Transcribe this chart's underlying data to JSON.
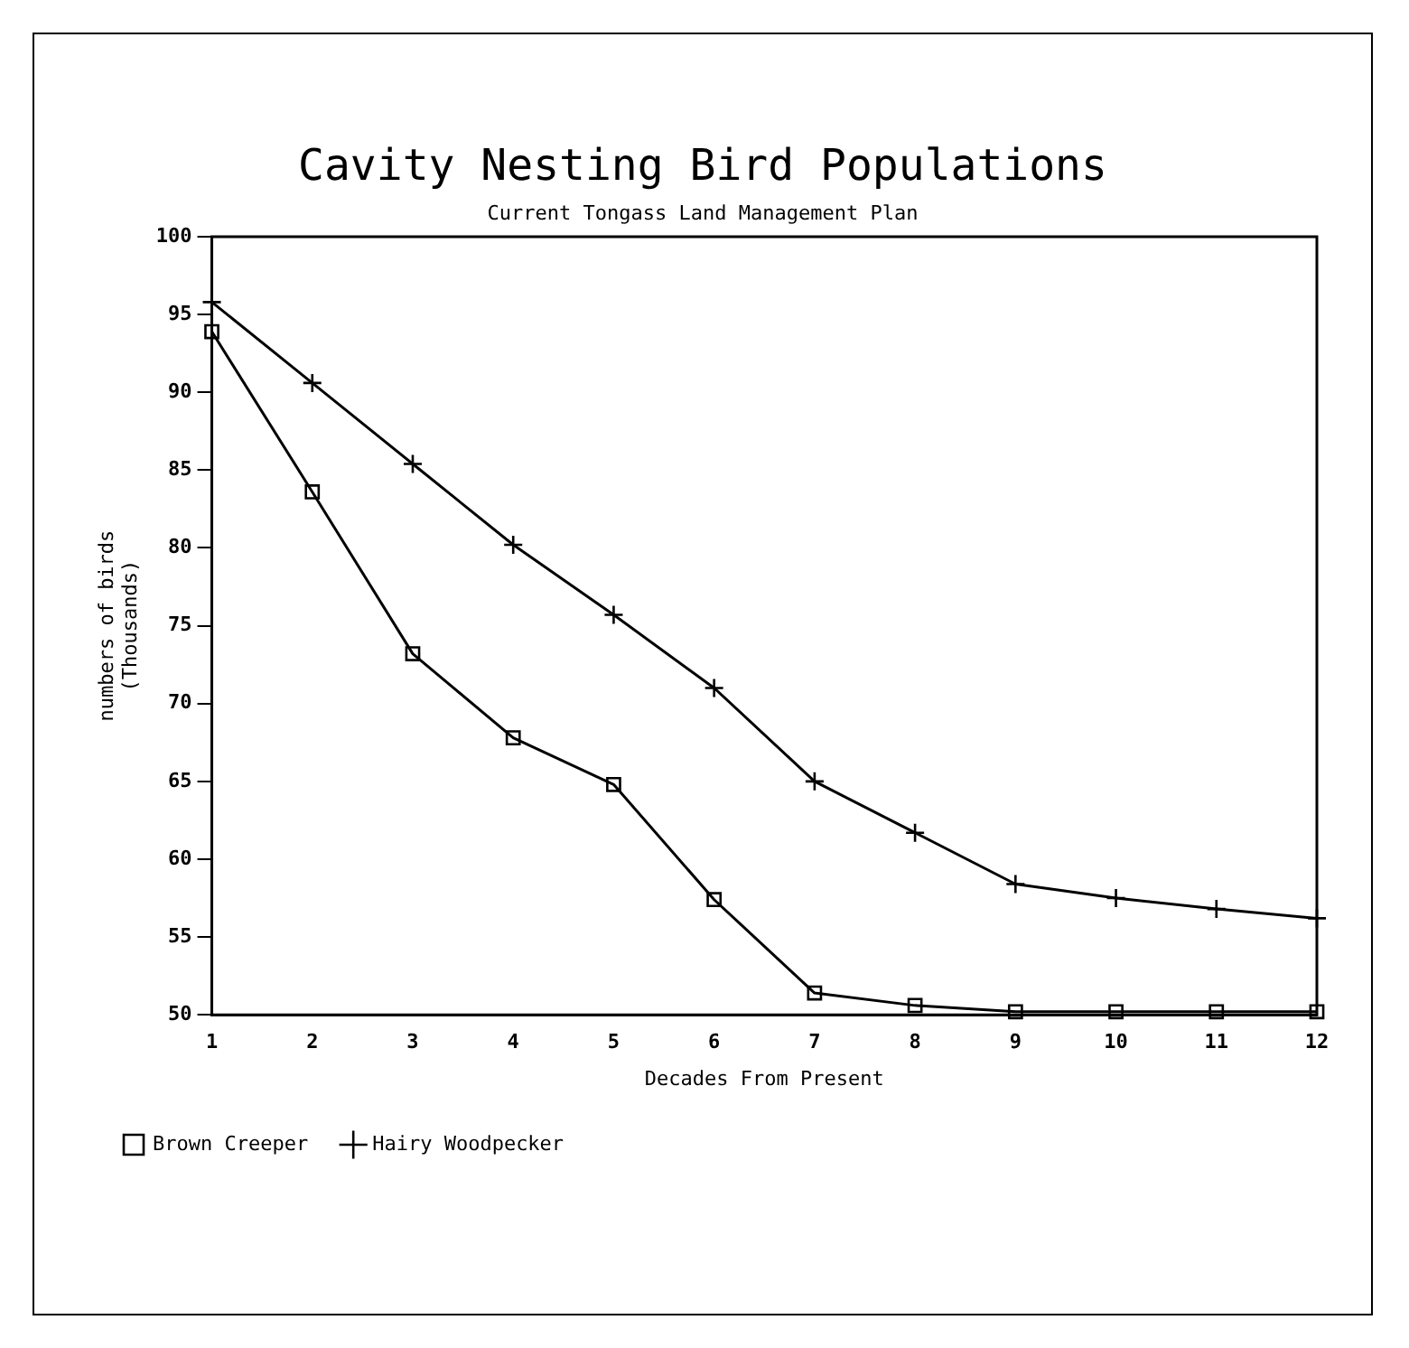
{
  "chart_data": {
    "type": "line",
    "title": "Cavity Nesting Bird Populations",
    "subtitle": "Current Tongass Land Management Plan",
    "xlabel": "Decades From Present",
    "ylabel": [
      "numbers of birds",
      "(Thousands)"
    ],
    "x": [
      1,
      2,
      3,
      4,
      5,
      6,
      7,
      8,
      9,
      10,
      11,
      12
    ],
    "series": [
      {
        "name": "Brown Creeper",
        "color": "#000000",
        "marker": "square",
        "values": [
          93.9,
          83.6,
          73.2,
          67.8,
          64.8,
          57.4,
          51.4,
          50.6,
          50.2,
          50.2,
          50.2,
          50.2
        ]
      },
      {
        "name": "Hairy Woodpecker",
        "color": "#000000",
        "marker": "cross",
        "values": [
          95.8,
          90.6,
          85.4,
          80.2,
          75.7,
          71.0,
          65.0,
          61.7,
          58.4,
          57.5,
          56.8,
          56.2
        ]
      }
    ],
    "xlim": [
      1,
      12
    ],
    "xticks": [
      1,
      2,
      3,
      4,
      5,
      6,
      7,
      8,
      9,
      10,
      11,
      12
    ],
    "ylim": [
      50,
      100
    ],
    "yticks": [
      50,
      55,
      60,
      65,
      70,
      75,
      80,
      85,
      90,
      95,
      100
    ],
    "grid": false,
    "legend": "bottom",
    "line_style": "solid"
  }
}
